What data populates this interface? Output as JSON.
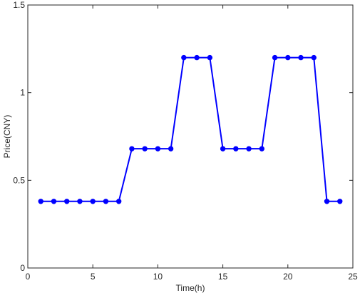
{
  "chart_data": {
    "type": "line",
    "title": "",
    "xlabel": "Time(h)",
    "ylabel": "Price(CNY)",
    "xlim": [
      0,
      25
    ],
    "ylim": [
      0,
      1.5
    ],
    "xticks": [
      0,
      5,
      10,
      15,
      20,
      25
    ],
    "yticks": [
      0,
      0.5,
      1,
      1.5
    ],
    "grid": false,
    "legend": "none",
    "series": [
      {
        "color": "#0000ff",
        "marker": "circle",
        "x": [
          1,
          2,
          3,
          4,
          5,
          6,
          7,
          8,
          9,
          10,
          11,
          12,
          13,
          14,
          15,
          16,
          17,
          18,
          19,
          20,
          21,
          22,
          23,
          24
        ],
        "y": [
          0.38,
          0.38,
          0.38,
          0.38,
          0.38,
          0.38,
          0.38,
          0.68,
          0.68,
          0.68,
          0.68,
          1.2,
          1.2,
          1.2,
          0.68,
          0.68,
          0.68,
          0.68,
          1.2,
          1.2,
          1.2,
          1.2,
          0.38,
          0.38
        ]
      }
    ]
  }
}
